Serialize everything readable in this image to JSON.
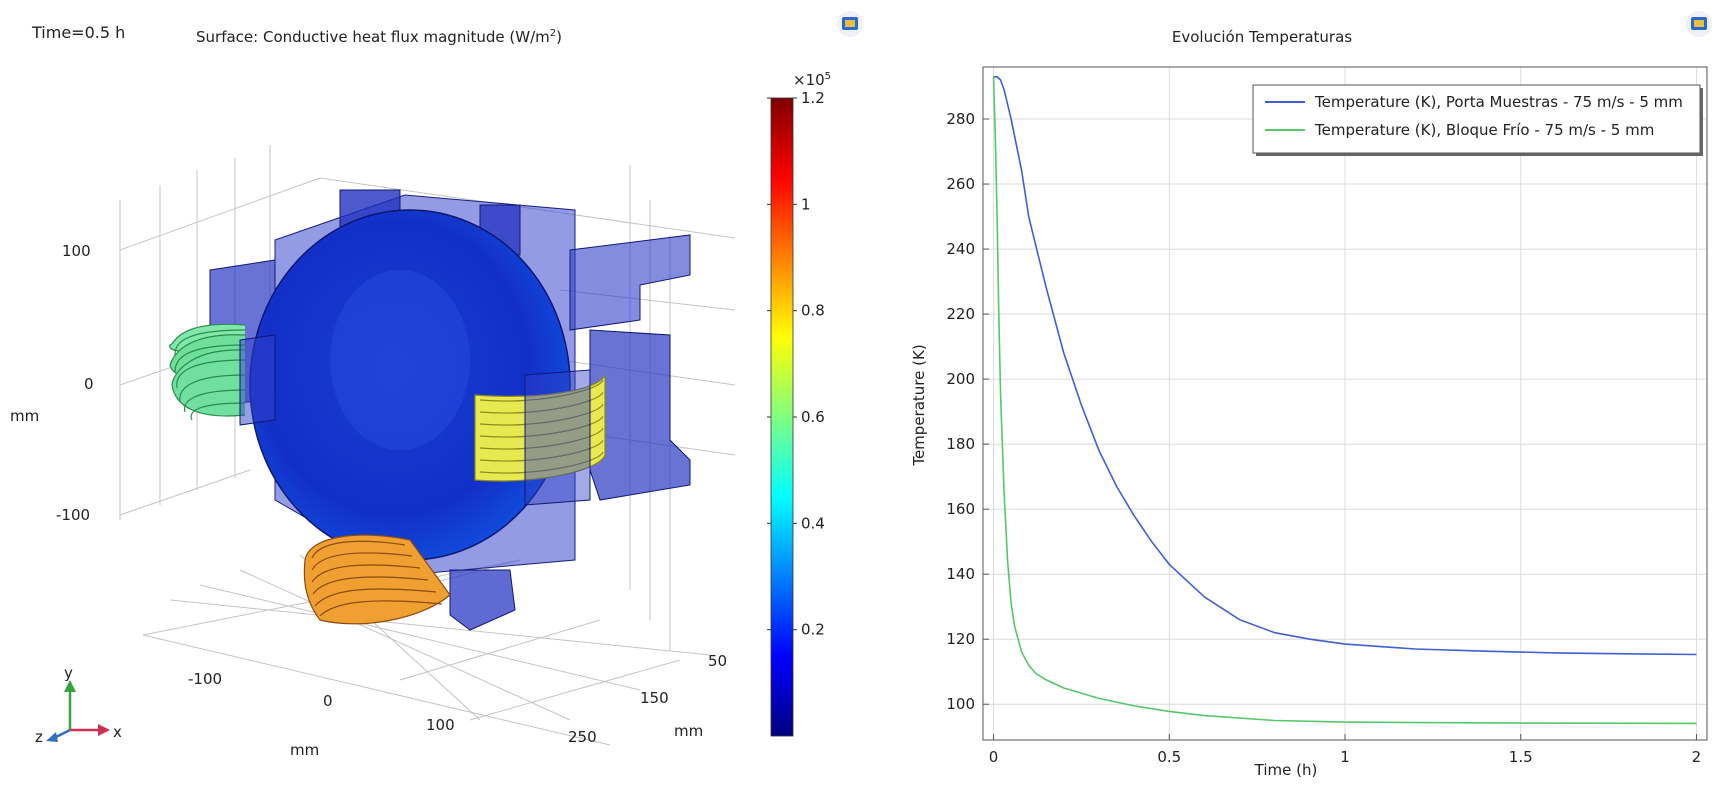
{
  "left_plot": {
    "time_label": "Time=0.5 h",
    "title_prefix": "Surface: Conductive heat flux magnitude (W/m",
    "title_exp": "2",
    "title_suffix": ")",
    "axis_unit": "mm",
    "y_ticks": [
      "100",
      "0",
      "-100"
    ],
    "x_ticks": [
      "-100",
      "0",
      "100"
    ],
    "z_ticks": [
      "50",
      "150",
      "250"
    ],
    "triad": {
      "y": "y",
      "x": "x",
      "z": "z"
    },
    "colorbar": {
      "multiplier_base": "×10",
      "multiplier_exp": "5",
      "ticks": [
        "1.2",
        "1",
        "0.8",
        "0.6",
        "0.4",
        "0.2"
      ],
      "tick_values": [
        1.2,
        1.0,
        0.8,
        0.6,
        0.4,
        0.2
      ],
      "range": [
        0,
        1.2
      ],
      "colors": [
        "#00007f",
        "#0000ff",
        "#0080ff",
        "#00ffff",
        "#80ff80",
        "#ffff00",
        "#ff8000",
        "#ff0000",
        "#7f0000"
      ]
    }
  },
  "chart_data": {
    "type": "line",
    "title": "Evolución Temperaturas",
    "xlabel": "Time (h)",
    "ylabel": "Temperature (K)",
    "xlim": [
      -0.03,
      2.03
    ],
    "ylim": [
      89,
      296
    ],
    "x_ticks": [
      0,
      0.5,
      1,
      1.5,
      2
    ],
    "x_tick_labels": [
      "0",
      "0.5",
      "1",
      "1.5",
      "2"
    ],
    "y_ticks": [
      100,
      120,
      140,
      160,
      180,
      200,
      220,
      240,
      260,
      280
    ],
    "grid": true,
    "legend_position": "top-right",
    "series": [
      {
        "name": "Temperature (K), Porta Muestras - 75 m/s - 5 mm",
        "color": "#4060d0",
        "x": [
          0,
          0.01,
          0.02,
          0.03,
          0.05,
          0.08,
          0.1,
          0.15,
          0.2,
          0.25,
          0.3,
          0.35,
          0.4,
          0.45,
          0.5,
          0.6,
          0.7,
          0.8,
          0.9,
          1.0,
          1.2,
          1.4,
          1.6,
          1.8,
          2.0
        ],
        "y": [
          293,
          293,
          292,
          289,
          280,
          264,
          250,
          228,
          208,
          192,
          178,
          167,
          158,
          150,
          143,
          133,
          126,
          122,
          120,
          118.5,
          117,
          116.3,
          115.8,
          115.5,
          115.3
        ]
      },
      {
        "name": "Temperature (K), Bloque Frío - 75 m/s - 5 mm",
        "color": "#55c86a",
        "x": [
          0,
          0.005,
          0.01,
          0.015,
          0.02,
          0.03,
          0.04,
          0.05,
          0.06,
          0.08,
          0.1,
          0.12,
          0.15,
          0.2,
          0.3,
          0.4,
          0.5,
          0.6,
          0.8,
          1.0,
          1.5,
          2.0
        ],
        "y": [
          293,
          275,
          250,
          220,
          195,
          165,
          144,
          131,
          124,
          116,
          112,
          109.5,
          107.5,
          105,
          101.8,
          99.5,
          97.8,
          96.5,
          95,
          94.5,
          94.2,
          94.1
        ]
      }
    ]
  }
}
